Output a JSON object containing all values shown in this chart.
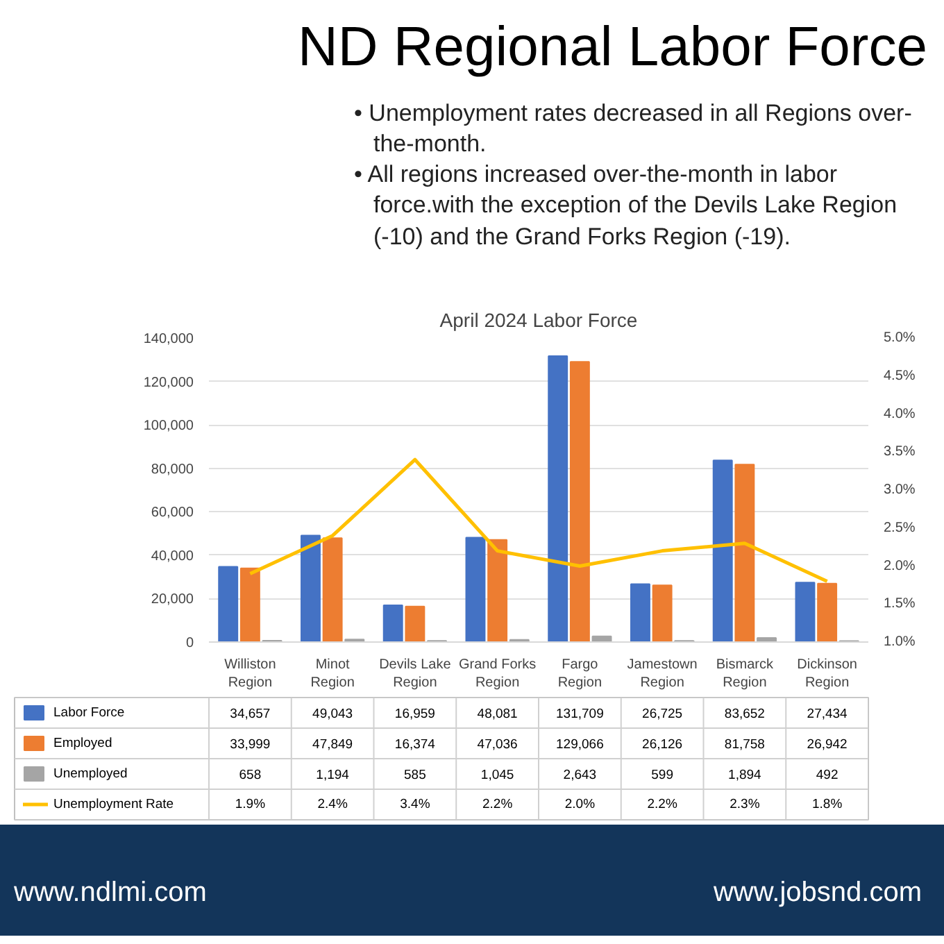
{
  "chart_data": {
    "type": "bar",
    "title": "ND Regional Labor Force",
    "subtitle": "April 2024 Labor Force",
    "annotations": [
      "• Unemployment rates decreased in all Regions over-the-month.",
      "• All regions increased over-the-month in labor force.with the exception of the Devils Lake Region (-10) and the Grand Forks Region (-19).",
      "www.ndlmi.com",
      "www.jobsnd.com"
    ],
    "categories": [
      "Williston Region",
      "Minot Region",
      "Devils Lake Region",
      "Grand Forks Region",
      "Fargo Region",
      "Jamestown Region",
      "Bismarck Region",
      "Dickinson Region"
    ],
    "series": [
      {
        "name": "Labor Force",
        "color": "#4472c4",
        "values": [
          34657,
          49043,
          16959,
          48081,
          131709,
          26725,
          83652,
          27434
        ],
        "value_labels": [
          "34,657",
          "49,043",
          "16,959",
          "48,081",
          "131,709",
          "26,725",
          "83,652",
          "27,434"
        ]
      },
      {
        "name": "Employed",
        "color": "#ed7d31",
        "values": [
          33999,
          47849,
          16374,
          47036,
          129066,
          26126,
          81758,
          26942
        ],
        "value_labels": [
          "33,999",
          "47,849",
          "16,374",
          "47,036",
          "129,066",
          "26,126",
          "81,758",
          "26,942"
        ]
      },
      {
        "name": "Unemployed",
        "color": "#a5a5a5",
        "values": [
          658,
          1194,
          585,
          1045,
          2643,
          599,
          1894,
          492
        ],
        "value_labels": [
          "658",
          "1,194",
          "585",
          "1,045",
          "2,643",
          "599",
          "1,894",
          "492"
        ]
      },
      {
        "name": "Unemployment Rate",
        "type": "line",
        "axis": "y2",
        "color": "#ffc000",
        "values": [
          1.9,
          2.4,
          3.4,
          2.2,
          2.0,
          2.2,
          2.3,
          1.8
        ],
        "value_labels": [
          "1.9%",
          "2.4%",
          "3.4%",
          "2.2%",
          "2.0%",
          "2.2%",
          "2.3%",
          "1.8%"
        ]
      }
    ],
    "ylim": [
      0,
      140000
    ],
    "yticks": [
      {
        "value": 0,
        "label": "0"
      },
      {
        "value": 20000,
        "label": "20,000"
      },
      {
        "value": 40000,
        "label": "40,000"
      },
      {
        "value": 60000,
        "label": "60,000"
      },
      {
        "value": 80000,
        "label": "80,000"
      },
      {
        "value": 100000,
        "label": "100,000"
      },
      {
        "value": 120000,
        "label": "120,000"
      },
      {
        "value": 140000,
        "label": "140,000"
      }
    ],
    "y2lim": [
      1,
      5
    ],
    "y2ticks": [
      {
        "value": 1,
        "label": "1.0%"
      },
      {
        "value": 1.5,
        "label": "1.5%"
      },
      {
        "value": 2,
        "label": "2.0%"
      },
      {
        "value": 2.5,
        "label": "2.5%"
      },
      {
        "value": 3,
        "label": "3.0%"
      },
      {
        "value": 3.5,
        "label": "3.5%"
      },
      {
        "value": 4,
        "label": "4.0%"
      },
      {
        "value": 4.5,
        "label": "4.5%"
      },
      {
        "value": 5,
        "label": "5.0%"
      }
    ],
    "grid": "y",
    "legend": "bottom",
    "marker": "none",
    "line_style": "solid"
  }
}
